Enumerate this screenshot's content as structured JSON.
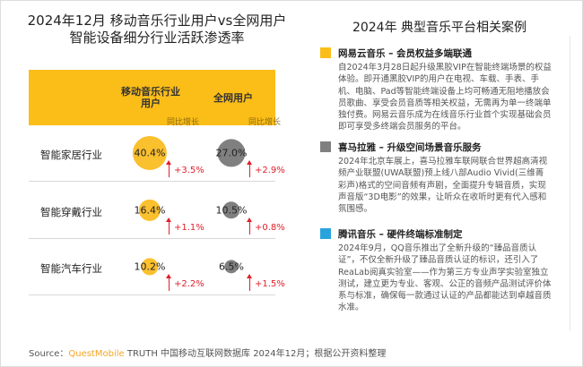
{
  "left": {
    "title_line1": "2024年12月 移动音乐行业用户vs全网用户",
    "title_line2": "智能设备细分行业活跃渗透率",
    "col_music": "移动音乐行业用户",
    "col_all": "全网用户",
    "yoy_label": "同比增长",
    "rows": [
      {
        "label": "智能家居行业",
        "music": "40.4%",
        "music_value": 40.4,
        "music_growth": "+3.5%",
        "all": "27.0%",
        "all_value": 27.0,
        "all_growth": "+2.9%"
      },
      {
        "label": "智能穿戴行业",
        "music": "16.4%",
        "music_value": 16.4,
        "music_growth": "+1.1%",
        "all": "10.5%",
        "all_value": 10.5,
        "all_growth": "+0.8%"
      },
      {
        "label": "智能汽车行业",
        "music": "10.2%",
        "music_value": 10.2,
        "music_growth": "+2.2%",
        "all": "6.5%",
        "all_value": 6.5,
        "all_growth": "+1.5%"
      }
    ],
    "colors": {
      "music": "#fbc02d",
      "all": "#808080",
      "header": "#fbbd18",
      "growth": "#e0202a"
    }
  },
  "right": {
    "title": "2024年 典型音乐平台相关案例",
    "cases": [
      {
        "title": "网易云音乐 – 会员权益多端联通",
        "color": "#fbbd18",
        "body": "自2024年3月28日起升级黑胶VIP在智能终端场景的权益体验。即开通黑胶VIP的用户在电视、车载、手表、手机、电脑、Pad等智能终端设备上均可畅通无阻地播放会员歌曲、享受会员音质等相关权益，无需再为单一终端单独付费。网易云音乐成为在线音乐行业首个实现基础会员即可享受多终端会员服务的平台。"
      },
      {
        "title": "喜马拉雅 – 升级空间场景音乐服务",
        "color": "#808080",
        "body": "2024年北京车展上，喜马拉雅车联网联合世界超高清视频产业联盟(UWA联盟)预上线八部Audio Vivid(三维菁彩声)格式的空间音频有声剧，全面提升专辑音质，实现声音版“3D电影”的效果，让听众在收听时更有代入感和氛围感。"
      },
      {
        "title": "腾讯音乐 – 硬件终端标准制定",
        "color": "#29a3dc",
        "body": "2024年9月，QQ音乐推出了全新升级的“臻品音质认证”，不仅全新升级了臻品音质认证的标识，还引入了ReaLab阅真实验室——作为第三方专业声学实验室独立测试，建立更为专业、客观、公正的音频产品测试评价体系与标准，确保每一款通过认证的产品都能达到卓越音质水准。"
      }
    ]
  },
  "source": {
    "prefix": "Source：",
    "brand": "QuestMobile",
    "rest": " TRUTH 中国移动互联网数据库 2024年12月；根据公开资料整理"
  }
}
